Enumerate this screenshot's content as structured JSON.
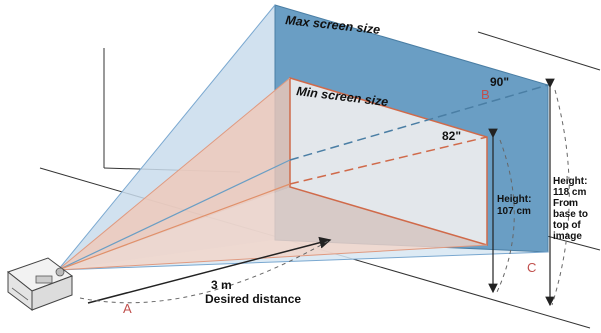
{
  "labels": {
    "max_screen": "Max screen size",
    "min_screen": "Min screen size",
    "max_diag": "90\"",
    "min_diag": "82\"",
    "point_a": "A",
    "point_b": "B",
    "point_c": "C",
    "distance": "3 m",
    "distance_caption": "Desired distance",
    "min_height_lines": [
      "Height:",
      "107 cm"
    ],
    "max_height_lines": [
      "Height:",
      "118 cm",
      "From",
      "base to",
      "top of",
      "image"
    ]
  },
  "colors": {
    "max_screen_fill": "#6a9ec4",
    "max_cone_fill": "#c9dcec",
    "min_screen_fill": "#eeeeee",
    "min_cone_fill": "#f0c8b8",
    "min_border": "#d06a4a",
    "letter_accent": "#c0504d"
  }
}
